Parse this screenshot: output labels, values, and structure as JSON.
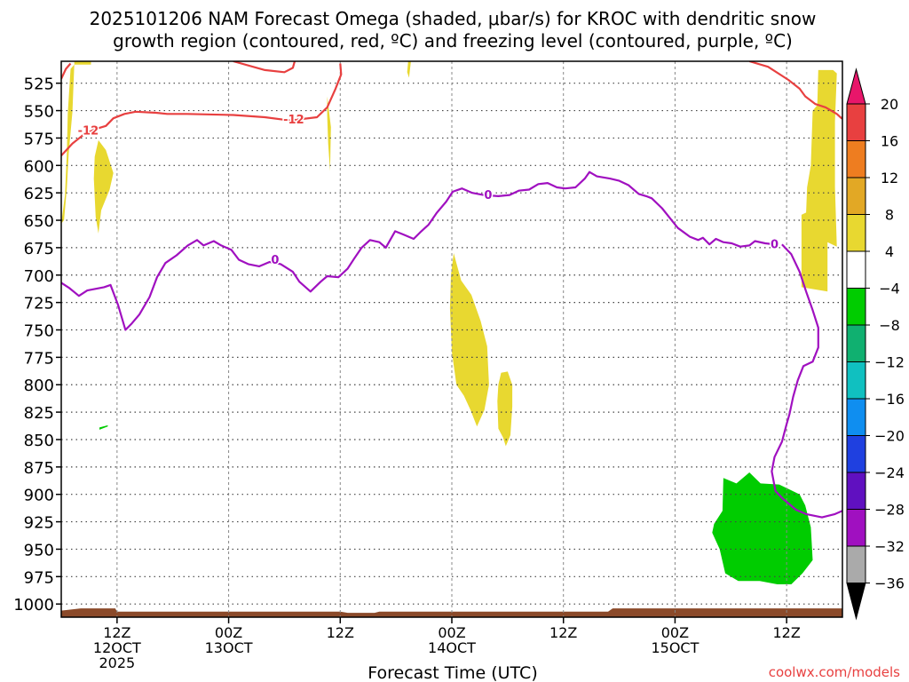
{
  "chart_data": {
    "type": "heatmap",
    "title_line1": "2025101206 NAM Forecast Omega (shaded, μbar/s) for KROC with dendritic snow",
    "title_line2": "growth region (contoured, red, ºC) and freezing level (contoured, purple, ºC)",
    "xlabel": "Forecast Time (UTC)",
    "ylabel": "",
    "credit": "coolwx.com/models",
    "x_unit": "forecast hour",
    "xlim": [
      0,
      84
    ],
    "ylim": [
      1012,
      505
    ],
    "y_ticks": [
      525,
      550,
      575,
      600,
      625,
      650,
      675,
      700,
      725,
      750,
      775,
      800,
      825,
      850,
      875,
      900,
      925,
      950,
      975,
      1000
    ],
    "x_ticks": [
      {
        "hour": 6,
        "lines": [
          "12Z",
          "12OCT",
          "2025"
        ]
      },
      {
        "hour": 18,
        "lines": [
          "00Z",
          "13OCT"
        ]
      },
      {
        "hour": 30,
        "lines": [
          "12Z"
        ]
      },
      {
        "hour": 42,
        "lines": [
          "00Z",
          "14OCT"
        ]
      },
      {
        "hour": 54,
        "lines": [
          "12Z"
        ]
      },
      {
        "hour": 66,
        "lines": [
          "00Z",
          "15OCT"
        ]
      },
      {
        "hour": 78,
        "lines": [
          "12Z"
        ]
      }
    ],
    "grid": true,
    "colorbar": {
      "placement": "right",
      "labels": [
        "20",
        "16",
        "12",
        "8",
        "4",
        "−4",
        "−8",
        "−12",
        "−16",
        "−20",
        "−24",
        "−28",
        "−32",
        "−36"
      ],
      "colors": [
        "#e8166a",
        "#e84040",
        "#ee7d20",
        "#e2a825",
        "#e8d830",
        "#ffffff",
        "#00cc00",
        "#10b070",
        "#10c0c0",
        "#0f8ef0",
        "#1f40e0",
        "#6010c0",
        "#a010c0",
        "#aaaaaa",
        "#000000"
      ]
    },
    "contours": [
      {
        "level": "-12",
        "color": "#e84040",
        "label_positions": [
          [
            2.9,
            568
          ],
          [
            25,
            558
          ]
        ],
        "segments": [
          [
            [
              0,
              591
            ],
            [
              1.2,
              580
            ],
            [
              2.4,
              572
            ],
            [
              3.6,
              567
            ],
            [
              4.8,
              564
            ],
            [
              5.6,
              557
            ],
            [
              6.8,
              553
            ],
            [
              8,
              551
            ],
            [
              10.2,
              552
            ],
            [
              11.4,
              553
            ],
            [
              13.5,
              553
            ],
            [
              18.5,
              554
            ],
            [
              21.9,
              556
            ],
            [
              24.6,
              559
            ],
            [
              27.5,
              556
            ],
            [
              28.6,
              547
            ],
            [
              29.5,
              530
            ],
            [
              30.1,
              517
            ],
            [
              30,
              507
            ]
          ],
          [
            [
              0,
              521
            ],
            [
              0.5,
              512
            ],
            [
              1,
              507
            ]
          ],
          [
            [
              18.5,
              505
            ],
            [
              21.9,
              513
            ],
            [
              24,
              515
            ],
            [
              24.9,
              511
            ],
            [
              25.1,
              505
            ]
          ],
          [
            [
              74,
              505
            ],
            [
              76,
              510
            ],
            [
              78.2,
              522
            ],
            [
              79.4,
              530
            ],
            [
              80,
              537
            ],
            [
              81.1,
              544
            ],
            [
              82.2,
              547
            ],
            [
              83.4,
              553
            ],
            [
              83.9,
              557
            ],
            [
              84,
              556
            ]
          ]
        ]
      },
      {
        "level": "0",
        "color": "#a010c0",
        "label_positions": [
          [
            23,
            686
          ],
          [
            45.9,
            627
          ],
          [
            76.7,
            672
          ]
        ],
        "segments": [
          [
            [
              0,
              707
            ],
            [
              0.9,
              712
            ],
            [
              1.9,
              719
            ],
            [
              2.8,
              714
            ],
            [
              4.6,
              711
            ],
            [
              5.3,
              709
            ],
            [
              6.1,
              727
            ],
            [
              6.9,
              750
            ],
            [
              7.6,
              744
            ],
            [
              8.4,
              736
            ],
            [
              9.5,
              720
            ],
            [
              10.3,
              702
            ],
            [
              11.2,
              689
            ],
            [
              12.4,
              682
            ],
            [
              13.6,
              673
            ],
            [
              14.6,
              668
            ],
            [
              15.3,
              673
            ],
            [
              16.4,
              669
            ],
            [
              17.2,
              673
            ],
            [
              18.3,
              677
            ],
            [
              19.1,
              686
            ],
            [
              20.1,
              690
            ],
            [
              21.3,
              692
            ],
            [
              22.4,
              688
            ],
            [
              23.6,
              690
            ],
            [
              24.9,
              697
            ],
            [
              25.6,
              706
            ],
            [
              26.8,
              715
            ],
            [
              27.9,
              706
            ],
            [
              28.6,
              701
            ],
            [
              29.8,
              702
            ],
            [
              30.8,
              694
            ],
            [
              31.5,
              685
            ],
            [
              32.3,
              675
            ],
            [
              33.2,
              668
            ],
            [
              34.2,
              670
            ],
            [
              34.9,
              675
            ],
            [
              35.9,
              660
            ],
            [
              36.8,
              663
            ],
            [
              37.9,
              667
            ],
            [
              38.6,
              661
            ],
            [
              39.5,
              654
            ],
            [
              40.4,
              643
            ],
            [
              41.4,
              633
            ],
            [
              42.1,
              624
            ],
            [
              43.1,
              621
            ],
            [
              44.2,
              625
            ],
            [
              45.4,
              627
            ],
            [
              47,
              628
            ],
            [
              48.2,
              627
            ],
            [
              49.2,
              623
            ],
            [
              50.3,
              622
            ],
            [
              51.3,
              617
            ],
            [
              52.3,
              616
            ],
            [
              53.3,
              620
            ],
            [
              54.2,
              621
            ],
            [
              55.3,
              620
            ],
            [
              56.3,
              612
            ],
            [
              56.8,
              606
            ],
            [
              57.6,
              610
            ],
            [
              59,
              612
            ],
            [
              60,
              614
            ],
            [
              61,
              618
            ],
            [
              62.1,
              626
            ],
            [
              62.9,
              628
            ],
            [
              63.5,
              630
            ],
            [
              64.6,
              639
            ],
            [
              66.3,
              657
            ],
            [
              67.6,
              665
            ],
            [
              68.5,
              668
            ],
            [
              69,
              666
            ],
            [
              69.7,
              672
            ],
            [
              70.4,
              667
            ],
            [
              71.2,
              670
            ],
            [
              72.1,
              671
            ],
            [
              73,
              674
            ],
            [
              74,
              673
            ],
            [
              74.6,
              669
            ],
            [
              75.7,
              671
            ],
            [
              76.7,
              672
            ]
          ],
          [
            [
              77.5,
              672
            ],
            [
              78.5,
              681
            ],
            [
              79.4,
              697
            ],
            [
              80.1,
              715
            ],
            [
              80.8,
              732
            ],
            [
              81.4,
              748
            ],
            [
              81.4,
              766
            ],
            [
              80.8,
              779
            ],
            [
              79.8,
              783
            ],
            [
              79.2,
              796
            ],
            [
              78.7,
              811
            ],
            [
              78.3,
              827
            ],
            [
              78,
              836
            ],
            [
              77.5,
              852
            ],
            [
              76.7,
              866
            ],
            [
              76.4,
              879
            ],
            [
              76.8,
              897
            ],
            [
              77.6,
              904
            ],
            [
              79,
              914
            ],
            [
              80.1,
              918
            ],
            [
              81.8,
              921
            ],
            [
              83.2,
              918
            ],
            [
              84,
              915
            ]
          ]
        ]
      }
    ],
    "shaded_regions": [
      {
        "class": "4 to 8",
        "color": "#e8d830",
        "points": [
          [
            0,
            653
          ],
          [
            0.4,
            627
          ],
          [
            0.6,
            589
          ],
          [
            0.7,
            553
          ],
          [
            1,
            512
          ],
          [
            1.4,
            508
          ],
          [
            1.2,
            551
          ],
          [
            0.8,
            589
          ],
          [
            0.6,
            621
          ],
          [
            0.3,
            650
          ]
        ]
      },
      {
        "class": "4 to 8",
        "color": "#e8d830",
        "points": [
          [
            1.4,
            508
          ],
          [
            3.2,
            508
          ],
          [
            3.2,
            505
          ],
          [
            1.4,
            505
          ]
        ]
      },
      {
        "class": "4 to 8",
        "color": "#e8d830",
        "points": [
          [
            4,
            577
          ],
          [
            4.8,
            586
          ],
          [
            5.6,
            607
          ],
          [
            5.2,
            622
          ],
          [
            4.3,
            641
          ],
          [
            4,
            662
          ],
          [
            3.7,
            647
          ],
          [
            3.5,
            612
          ],
          [
            3.6,
            592
          ]
        ]
      },
      {
        "class": "4 to 8",
        "color": "#e8d830",
        "points": [
          [
            37.3,
            505
          ],
          [
            37.6,
            505
          ],
          [
            37.4,
            520
          ],
          [
            37.2,
            515
          ]
        ]
      },
      {
        "class": "4 to 8",
        "color": "#e8d830",
        "points": [
          [
            28.6,
            537
          ],
          [
            29,
            565
          ],
          [
            28.9,
            605
          ],
          [
            28.7,
            580
          ],
          [
            28.6,
            555
          ]
        ]
      },
      {
        "class": "4 to 8",
        "color": "#e8d830",
        "points": [
          [
            42.2,
            680
          ],
          [
            43,
            705
          ],
          [
            44.1,
            718
          ],
          [
            45.1,
            742
          ],
          [
            45.8,
            765
          ],
          [
            46,
            800
          ],
          [
            45.5,
            823
          ],
          [
            44.7,
            838
          ],
          [
            44,
            823
          ],
          [
            43.3,
            810
          ],
          [
            42.5,
            800
          ],
          [
            42,
            770
          ],
          [
            41.8,
            730
          ],
          [
            41.9,
            700
          ]
        ]
      },
      {
        "class": "4 to 8",
        "color": "#e8d830",
        "points": [
          [
            47.3,
            789
          ],
          [
            48,
            788
          ],
          [
            48.5,
            800
          ],
          [
            48.5,
            820
          ],
          [
            48.3,
            846
          ],
          [
            47.8,
            856
          ],
          [
            47.5,
            848
          ],
          [
            47,
            840
          ],
          [
            46.9,
            815
          ],
          [
            47,
            800
          ]
        ]
      },
      {
        "class": "4 to 8",
        "color": "#e8d830",
        "points": [
          [
            81.4,
            513
          ],
          [
            83,
            513
          ],
          [
            83.4,
            516
          ],
          [
            83.2,
            560
          ],
          [
            83.2,
            620
          ],
          [
            83.4,
            674
          ],
          [
            82.4,
            670
          ],
          [
            82.4,
            715
          ],
          [
            79.6,
            711
          ],
          [
            79.6,
            645
          ],
          [
            80.1,
            643
          ],
          [
            80.2,
            620
          ],
          [
            80.6,
            600
          ],
          [
            80.8,
            550
          ],
          [
            81.3,
            545
          ]
        ]
      },
      {
        "class": "-8 to -4",
        "color": "#00cc00",
        "points": [
          [
            71.2,
            885
          ],
          [
            72.6,
            890
          ],
          [
            74,
            880
          ],
          [
            75.2,
            890
          ],
          [
            77.2,
            891
          ],
          [
            79.4,
            900
          ],
          [
            80,
            910
          ],
          [
            80.6,
            930
          ],
          [
            80.8,
            960
          ],
          [
            79.7,
            972
          ],
          [
            78.5,
            982
          ],
          [
            77,
            982
          ],
          [
            75.1,
            979
          ],
          [
            72.8,
            979
          ],
          [
            71.4,
            972
          ],
          [
            70.8,
            950
          ],
          [
            70,
            935
          ],
          [
            70.2,
            927
          ],
          [
            71.1,
            915
          ]
        ]
      },
      {
        "class": "-8 to -4",
        "color": "#00cc00",
        "points": [
          [
            4.1,
            839
          ],
          [
            5,
            837
          ],
          [
            5,
            838
          ],
          [
            4.1,
            841
          ]
        ]
      }
    ],
    "surface_band": {
      "color": "#8b4a2a",
      "points": [
        [
          0,
          1006
        ],
        [
          2.1,
          1004
        ],
        [
          5.8,
          1004
        ],
        [
          6,
          1007
        ],
        [
          30,
          1007
        ],
        [
          30.8,
          1008
        ],
        [
          33.7,
          1008
        ],
        [
          34.2,
          1007
        ],
        [
          58.8,
          1007
        ],
        [
          59.3,
          1004
        ],
        [
          84,
          1004
        ]
      ]
    }
  }
}
